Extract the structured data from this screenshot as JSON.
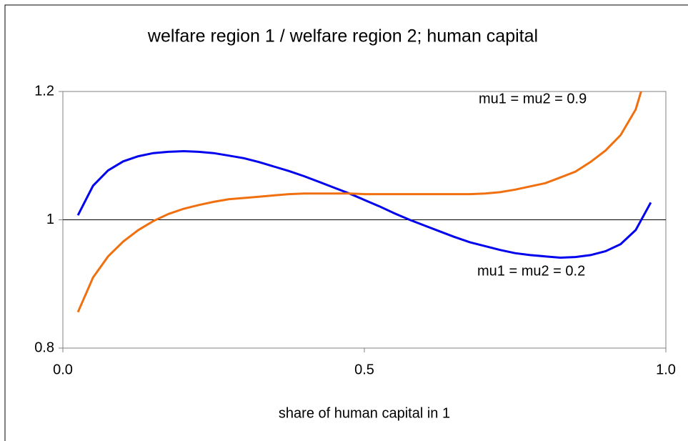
{
  "chart_data": {
    "type": "line",
    "title": "welfare region 1 / welfare region 2; human capital",
    "x_label": "share of human capital in 1",
    "x": [
      0.025,
      0.05,
      0.075,
      0.1,
      0.125,
      0.15,
      0.175,
      0.2,
      0.225,
      0.25,
      0.275,
      0.3,
      0.325,
      0.35,
      0.375,
      0.4,
      0.425,
      0.45,
      0.475,
      0.5,
      0.525,
      0.55,
      0.575,
      0.6,
      0.625,
      0.65,
      0.675,
      0.7,
      0.725,
      0.75,
      0.775,
      0.8,
      0.825,
      0.85,
      0.875,
      0.9,
      0.925,
      0.95,
      0.975
    ],
    "series": [
      {
        "name": "mu1 = mu2 = 0.2",
        "color": "#0000ee",
        "values": [
          1.007,
          1.053,
          1.077,
          1.091,
          1.099,
          1.104,
          1.106,
          1.107,
          1.106,
          1.104,
          1.1,
          1.096,
          1.09,
          1.083,
          1.076,
          1.068,
          1.059,
          1.05,
          1.041,
          1.031,
          1.021,
          1.01,
          1.0,
          0.991,
          0.982,
          0.973,
          0.965,
          0.959,
          0.953,
          0.948,
          0.945,
          0.943,
          0.941,
          0.942,
          0.945,
          0.951,
          0.962,
          0.984,
          1.027
        ]
      },
      {
        "name": "mu1 = mu2 = 0.9",
        "color": "#f07010",
        "values": [
          0.856,
          0.91,
          0.943,
          0.966,
          0.984,
          0.998,
          1.009,
          1.017,
          1.023,
          1.028,
          1.032,
          1.034,
          1.036,
          1.038,
          1.04,
          1.041,
          1.041,
          1.041,
          1.041,
          1.04,
          1.04,
          1.04,
          1.04,
          1.04,
          1.04,
          1.04,
          1.04,
          1.041,
          1.043,
          1.047,
          1.052,
          1.057,
          1.066,
          1.075,
          1.09,
          1.108,
          1.132,
          1.172,
          1.25
        ]
      }
    ],
    "xlim": [
      0,
      1
    ],
    "xticks": [
      {
        "value": 0,
        "label": "0.0"
      },
      0.5,
      {
        "value": 1,
        "label": "1.0"
      }
    ],
    "ylim": [
      0.8,
      1.2
    ],
    "yticks": [
      0.8,
      1,
      1.2
    ],
    "x_axis_crosses": 1
  }
}
